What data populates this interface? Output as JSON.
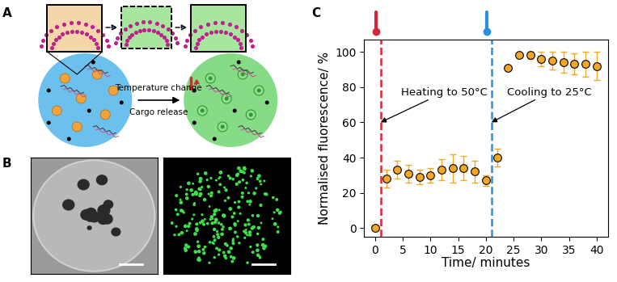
{
  "panel_labels": [
    "A",
    "B",
    "C"
  ],
  "diagram": {
    "arrow_labels": [
      "Temperature change",
      "Cargo release"
    ]
  },
  "chart_data": {
    "type": "scatter",
    "x": [
      0,
      2,
      4,
      6,
      8,
      10,
      12,
      14,
      16,
      18,
      20,
      22,
      24,
      26,
      28,
      30,
      32,
      34,
      36,
      38,
      40
    ],
    "values": [
      0,
      28,
      33,
      31,
      29,
      30,
      33,
      34,
      34,
      32,
      27,
      40,
      91,
      98,
      98,
      96,
      95,
      94,
      93,
      93,
      92
    ],
    "errors": [
      0,
      5,
      5,
      5,
      4,
      4,
      6,
      8,
      7,
      6,
      3,
      5,
      1,
      1,
      2,
      4,
      5,
      6,
      6,
      7,
      8
    ],
    "color": "#f5a623",
    "marker": "o",
    "xlabel": "Time/ minutes",
    "ylabel": "Normalised fluorescence/ %",
    "xlim": [
      -2,
      42
    ],
    "ylim": [
      -5,
      107
    ],
    "xticks": [
      0,
      5,
      10,
      15,
      20,
      25,
      30,
      35,
      40
    ],
    "yticks": [
      0,
      20,
      40,
      60,
      80,
      100
    ],
    "events": [
      {
        "x": 1,
        "text": "Heating to 50°C",
        "color": "#d62739",
        "line_style": "dashed"
      },
      {
        "x": 21,
        "text": "Cooling to 25°C",
        "color": "#2a8fe0",
        "line_style": "dashed"
      }
    ]
  }
}
